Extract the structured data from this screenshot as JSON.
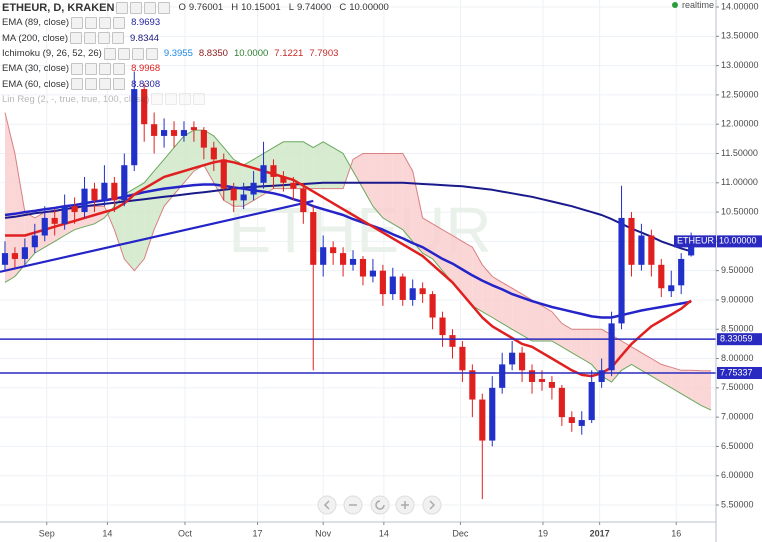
{
  "header": {
    "symbol": "ETHEUR, D, KRAKEN",
    "ohlc": [
      {
        "key": "O",
        "value": "9.76001"
      },
      {
        "key": "H",
        "value": "10.15001"
      },
      {
        "key": "L",
        "value": "9.74000"
      },
      {
        "key": "C",
        "value": "10.00000"
      }
    ]
  },
  "indicators": [
    {
      "name": "EMA (89, close)",
      "values": [
        "8.9693"
      ],
      "colors": [
        "#1f1f9f"
      ]
    },
    {
      "name": "MA (200, close)",
      "values": [
        "9.8344"
      ],
      "colors": [
        "#1a1a7a"
      ]
    },
    {
      "name": "Ichimoku (9, 26, 52, 26)",
      "values": [
        "9.3955",
        "8.8350",
        "10.0000",
        "7.1221",
        "7.7903"
      ],
      "colors": [
        "#1e88e5",
        "#8b1a1a",
        "#2e7d32",
        "#c62828",
        "#c62828"
      ]
    },
    {
      "name": "EMA (30, close)",
      "values": [
        "8.9968"
      ],
      "colors": [
        "#e02020"
      ]
    },
    {
      "name": "EMA (60, close)",
      "values": [
        "8.8308"
      ],
      "colors": [
        "#1f1f9f"
      ]
    },
    {
      "name": "Lin Reg (2, -, true, true, 100, close)",
      "values": [],
      "colors": [],
      "faded": true
    }
  ],
  "realtime": "realtime",
  "watermark": "ETHEUR",
  "chart_data": {
    "type": "candlestick",
    "grid": true,
    "xlim": [
      -0.5,
      71.5
    ],
    "ylim": [
      5.21,
      14.12
    ],
    "xticks": [
      {
        "value": 4.2,
        "label": "Sep"
      },
      {
        "value": 10.3,
        "label": "14"
      },
      {
        "value": 18.1,
        "label": "Oct"
      },
      {
        "value": 25.4,
        "label": "17"
      },
      {
        "value": 32.0,
        "label": "Nov"
      },
      {
        "value": 38.1,
        "label": "14"
      },
      {
        "value": 45.8,
        "label": "Dec"
      },
      {
        "value": 54.1,
        "label": "19"
      },
      {
        "value": 59.8,
        "label": "2017"
      },
      {
        "value": 67.5,
        "label": "16"
      }
    ],
    "yticks": [
      {
        "value": 5.5,
        "label": "5.50000"
      },
      {
        "value": 6,
        "label": "6.00000"
      },
      {
        "value": 6.5,
        "label": "6.50000"
      },
      {
        "value": 7,
        "label": "7.00000"
      },
      {
        "value": 7.5,
        "label": "7.50000"
      },
      {
        "value": 8,
        "label": "8.00000"
      },
      {
        "value": 8.5,
        "label": "8.50000"
      },
      {
        "value": 9,
        "label": "9.00000"
      },
      {
        "value": 9.5,
        "label": "9.50000"
      },
      {
        "value": 10,
        "label": "10.00000"
      },
      {
        "value": 10.5,
        "label": "10.50000"
      },
      {
        "value": 11,
        "label": "11.00000"
      },
      {
        "value": 11.5,
        "label": "11.50000"
      },
      {
        "value": 12,
        "label": "12.00000"
      },
      {
        "value": 12.5,
        "label": "12.50000"
      },
      {
        "value": 13,
        "label": "13.00000"
      },
      {
        "value": 13.5,
        "label": "13.50000"
      },
      {
        "value": 14,
        "label": "14.00000"
      }
    ],
    "up_color": "#2130c9",
    "down_color": "#e0201f",
    "open": [
      9.6,
      9.8,
      9.7,
      9.9,
      10.1,
      10.4,
      10.3,
      10.6,
      10.5,
      10.9,
      10.7,
      11.0,
      10.7,
      11.3,
      12.6,
      12.0,
      11.8,
      11.9,
      11.8,
      11.95,
      11.9,
      11.6,
      11.4,
      10.9,
      10.7,
      10.8,
      11.0,
      11.3,
      11.1,
      11.0,
      10.9,
      10.5,
      9.6,
      9.9,
      9.8,
      9.6,
      9.7,
      9.4,
      9.5,
      9.1,
      9.4,
      9.0,
      9.2,
      9.1,
      8.7,
      8.4,
      8.2,
      7.8,
      7.3,
      6.6,
      7.5,
      7.9,
      8.1,
      7.8,
      7.65,
      7.6,
      7.5,
      7.0,
      6.85,
      6.95,
      7.6,
      7.8,
      8.6,
      10.4,
      9.6,
      10.1,
      9.6,
      9.15,
      9.25,
      9.76
    ],
    "high": [
      10.0,
      9.9,
      10.05,
      10.3,
      10.6,
      10.55,
      10.8,
      10.75,
      11.1,
      11.0,
      11.3,
      11.1,
      11.5,
      12.9,
      12.7,
      12.2,
      12.1,
      12.05,
      12.05,
      12.05,
      11.95,
      11.7,
      11.5,
      11.0,
      11.0,
      11.2,
      11.7,
      11.4,
      11.2,
      11.1,
      11.0,
      10.6,
      10.1,
      10.0,
      9.9,
      9.85,
      9.75,
      9.7,
      9.6,
      9.55,
      9.45,
      9.35,
      9.3,
      9.15,
      8.8,
      8.5,
      8.3,
      7.9,
      7.4,
      7.7,
      8.1,
      8.3,
      8.2,
      7.9,
      7.8,
      7.7,
      7.55,
      7.1,
      7.1,
      7.8,
      8.0,
      8.8,
      10.95,
      10.5,
      10.3,
      10.2,
      9.7,
      9.5,
      9.8,
      10.15
    ],
    "low": [
      9.5,
      9.55,
      9.6,
      9.8,
      10.0,
      10.1,
      10.2,
      10.3,
      10.4,
      10.5,
      10.6,
      10.5,
      10.6,
      11.2,
      11.7,
      11.5,
      11.6,
      11.6,
      11.7,
      11.7,
      11.4,
      11.2,
      10.7,
      10.5,
      10.55,
      10.7,
      10.9,
      10.9,
      10.85,
      10.7,
      10.3,
      7.8,
      9.4,
      9.6,
      9.4,
      9.5,
      9.25,
      9.3,
      8.9,
      9.0,
      8.9,
      8.9,
      8.95,
      8.5,
      8.2,
      8.0,
      7.6,
      7.0,
      5.6,
      6.5,
      7.4,
      7.8,
      7.6,
      7.4,
      7.45,
      7.3,
      6.85,
      6.75,
      6.7,
      6.9,
      7.5,
      7.7,
      8.5,
      9.4,
      9.5,
      9.4,
      9.05,
      9.05,
      9.1,
      9.74
    ],
    "close": [
      9.8,
      9.7,
      9.9,
      10.1,
      10.4,
      10.3,
      10.6,
      10.5,
      10.9,
      10.7,
      11.0,
      10.7,
      11.3,
      12.6,
      12.0,
      11.8,
      11.9,
      11.8,
      11.9,
      11.9,
      11.6,
      11.4,
      10.9,
      10.7,
      10.8,
      11.0,
      11.3,
      11.1,
      11.0,
      10.9,
      10.5,
      9.6,
      9.9,
      9.8,
      9.6,
      9.7,
      9.4,
      9.5,
      9.1,
      9.4,
      9.0,
      9.2,
      9.1,
      8.7,
      8.4,
      8.2,
      7.8,
      7.3,
      6.6,
      7.5,
      7.9,
      8.1,
      7.8,
      7.6,
      7.6,
      7.5,
      7.0,
      6.9,
      6.95,
      7.6,
      7.8,
      8.6,
      10.4,
      9.6,
      10.1,
      9.6,
      9.2,
      9.25,
      9.7,
      10.0
    ],
    "cloud": {
      "up_color": "#cfe8c8",
      "down_color": "#f9cfcf",
      "a_color": "#6aa85c",
      "b_color": "#d98080",
      "span_a": [
        9.3,
        9.4,
        9.6,
        9.8,
        9.9,
        10.0,
        10.1,
        10.2,
        10.25,
        10.3,
        10.4,
        10.6,
        10.8,
        10.9,
        11.0,
        11.2,
        11.4,
        11.6,
        11.8,
        11.9,
        11.9,
        11.8,
        11.6,
        11.4,
        11.3,
        11.4,
        11.5,
        11.6,
        11.7,
        11.7,
        11.7,
        11.6,
        11.7,
        11.6,
        11.5,
        11.2,
        10.9,
        10.6,
        10.4,
        10.3,
        10.2,
        10.0,
        9.8,
        9.7,
        9.5,
        9.3,
        9.1,
        8.9,
        8.8,
        8.7,
        8.6,
        8.5,
        8.4,
        8.3,
        8.3,
        8.3,
        8.2,
        8.1,
        8.0,
        7.9,
        7.7,
        7.6,
        7.8,
        7.9,
        7.8,
        7.7,
        7.6,
        7.5,
        7.4,
        7.3,
        7.2,
        7.12
      ],
      "span_b": [
        12.2,
        11.5,
        10.5,
        10.4,
        10.5,
        10.5,
        10.55,
        10.55,
        10.6,
        10.6,
        10.6,
        10.2,
        9.7,
        9.5,
        9.7,
        10.2,
        10.6,
        10.8,
        11.0,
        11.2,
        11.3,
        11.0,
        10.7,
        10.6,
        10.6,
        10.7,
        10.8,
        10.9,
        10.9,
        10.9,
        10.9,
        10.9,
        10.9,
        10.9,
        10.9,
        11.4,
        11.5,
        11.5,
        11.5,
        11.5,
        11.5,
        11.2,
        10.4,
        10.3,
        10.2,
        10.1,
        10.0,
        9.9,
        9.6,
        9.4,
        9.3,
        9.2,
        9.1,
        9.0,
        8.9,
        8.8,
        8.6,
        8.5,
        8.5,
        8.5,
        8.5,
        8.4,
        8.3,
        8.2,
        8.1,
        8.0,
        7.9,
        7.85,
        7.8,
        7.8,
        7.79,
        7.79
      ]
    },
    "overlays": [
      {
        "color": "#1a1a8c",
        "width": 2,
        "values": [
          10.4,
          10.42,
          10.45,
          10.48,
          10.5,
          10.52,
          10.55,
          10.58,
          10.6,
          10.62,
          10.64,
          10.66,
          10.68,
          10.7,
          10.72,
          10.74,
          10.76,
          10.78,
          10.8,
          10.82,
          10.84,
          10.86,
          10.88,
          10.9,
          10.92,
          10.93,
          10.94,
          10.95,
          10.96,
          10.97,
          10.98,
          10.99,
          11.0,
          11.0,
          11.0,
          11.0,
          11.0,
          11.0,
          11.0,
          11.0,
          11.0,
          10.99,
          10.98,
          10.97,
          10.96,
          10.95,
          10.94,
          10.92,
          10.9,
          10.88,
          10.85,
          10.82,
          10.79,
          10.76,
          10.72,
          10.68,
          10.64,
          10.6,
          10.55,
          10.5,
          10.45,
          10.38,
          10.3,
          10.22,
          10.15,
          10.08,
          10.0,
          9.94,
          9.88,
          9.83
        ]
      },
      {
        "color": "#2424c8",
        "width": 2.5,
        "values": [
          10.45,
          10.47,
          10.5,
          10.52,
          10.55,
          10.57,
          10.6,
          10.62,
          10.65,
          10.68,
          10.7,
          10.73,
          10.76,
          10.8,
          10.84,
          10.87,
          10.9,
          10.92,
          10.94,
          10.96,
          10.97,
          10.97,
          10.95,
          10.92,
          10.9,
          10.87,
          10.85,
          10.82,
          10.78,
          10.72,
          10.67,
          10.6,
          10.55,
          10.5,
          10.45,
          10.38,
          10.32,
          10.26,
          10.2,
          10.12,
          10.05,
          9.97,
          9.9,
          9.8,
          9.7,
          9.62,
          9.52,
          9.42,
          9.33,
          9.25,
          9.18,
          9.1,
          9.04,
          8.98,
          8.93,
          8.88,
          8.84,
          8.8,
          8.76,
          8.72,
          8.7,
          8.7,
          8.74,
          8.78,
          8.82,
          8.85,
          8.88,
          8.91,
          8.94,
          8.97
        ]
      },
      {
        "color": "#e02020",
        "width": 2.5,
        "values": [
          10.1,
          10.1,
          10.1,
          10.15,
          10.2,
          10.25,
          10.3,
          10.35,
          10.4,
          10.45,
          10.5,
          10.55,
          10.65,
          10.8,
          10.9,
          11.0,
          11.1,
          11.15,
          11.2,
          11.25,
          11.3,
          11.35,
          11.38,
          11.35,
          11.3,
          11.25,
          11.2,
          11.15,
          11.1,
          11.05,
          10.95,
          10.85,
          10.75,
          10.65,
          10.55,
          10.45,
          10.35,
          10.25,
          10.15,
          10.05,
          9.95,
          9.85,
          9.75,
          9.6,
          9.45,
          9.3,
          9.1,
          8.9,
          8.7,
          8.55,
          8.45,
          8.35,
          8.25,
          8.2,
          8.1,
          8.0,
          7.9,
          7.8,
          7.72,
          7.7,
          7.75,
          7.85,
          8.05,
          8.25,
          8.4,
          8.55,
          8.65,
          8.75,
          8.85,
          8.99
        ]
      }
    ],
    "trendline": {
      "color": "#2424c8",
      "x": [
        -0.5,
        31
      ],
      "y": [
        9.48,
        10.69
      ]
    },
    "hlines": [
      {
        "value": 8.33059,
        "color": "#2a2ac0"
      },
      {
        "value": 7.75337,
        "color": "#2a2ac0"
      }
    ],
    "price_tag": {
      "text": "ETHEUR",
      "label": "10.00000",
      "value": 10,
      "color": "#2a2ac0"
    }
  }
}
